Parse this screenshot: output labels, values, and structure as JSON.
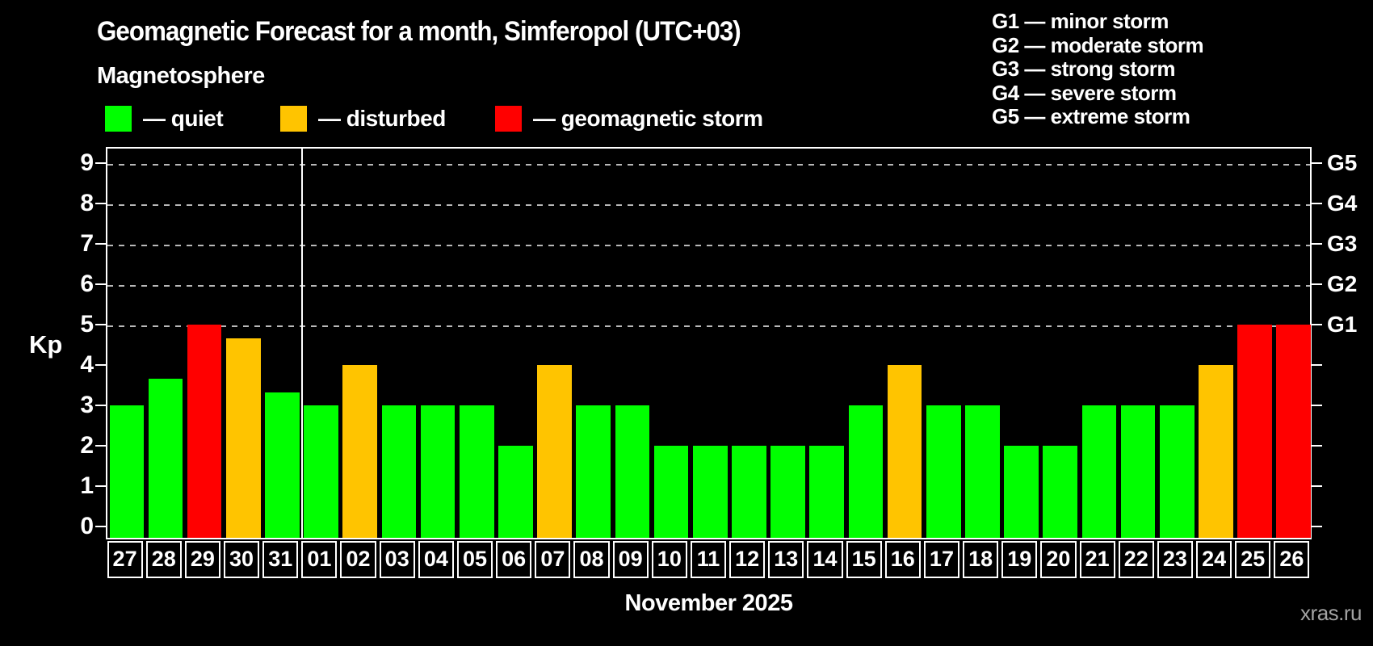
{
  "title": "Geomagnetic Forecast for a month, Simferopol (UTC+03)",
  "subtitle": "Magnetosphere",
  "legend": {
    "items": [
      {
        "key": "quiet",
        "label": "— quiet",
        "color": "#00ff00"
      },
      {
        "key": "disturbed",
        "label": "— disturbed",
        "color": "#ffc400"
      },
      {
        "key": "storm",
        "label": "— geomagnetic storm",
        "color": "#ff0000"
      }
    ]
  },
  "g_legend": [
    "G1 — minor storm",
    "G2 — moderate storm",
    "G3 — strong storm",
    "G4 — severe storm",
    "G5 — extreme storm"
  ],
  "watermark": "xras.ru",
  "colors": {
    "background": "#000000",
    "text": "#ffffff",
    "grid": "#b8b8b8",
    "watermark": "#a3a3a3",
    "quiet": "#00ff00",
    "disturbed": "#ffc400",
    "storm": "#ff0000"
  },
  "chart_data": {
    "type": "bar",
    "title": "Geomagnetic Forecast for a month, Simferopol (UTC+03)",
    "ylabel": "Kp",
    "xlabel": "November 2025",
    "ylim": [
      0,
      9
    ],
    "yticks": [
      0,
      1,
      2,
      3,
      4,
      5,
      6,
      7,
      8,
      9
    ],
    "grid_kp_levels": [
      5,
      6,
      7,
      8,
      9
    ],
    "right_axis_labels": [
      {
        "kp": 5,
        "label": "G1"
      },
      {
        "kp": 6,
        "label": "G2"
      },
      {
        "kp": 7,
        "label": "G3"
      },
      {
        "kp": 8,
        "label": "G4"
      },
      {
        "kp": 9,
        "label": "G5"
      }
    ],
    "month_separator_before_category": "01",
    "categories": [
      "27",
      "28",
      "29",
      "30",
      "31",
      "01",
      "02",
      "03",
      "04",
      "05",
      "06",
      "07",
      "08",
      "09",
      "10",
      "11",
      "12",
      "13",
      "14",
      "15",
      "16",
      "17",
      "18",
      "19",
      "20",
      "21",
      "22",
      "23",
      "24",
      "25",
      "26"
    ],
    "values": [
      3.0,
      3.67,
      5.0,
      4.67,
      3.33,
      3.0,
      4.0,
      3.0,
      3.0,
      3.0,
      2.0,
      4.0,
      3.0,
      3.0,
      2.0,
      2.0,
      2.0,
      2.0,
      2.0,
      3.0,
      4.0,
      3.0,
      3.0,
      2.0,
      2.0,
      3.0,
      3.0,
      3.0,
      4.0,
      5.0,
      5.0
    ],
    "statuses": [
      "quiet",
      "quiet",
      "storm",
      "disturbed",
      "quiet",
      "quiet",
      "disturbed",
      "quiet",
      "quiet",
      "quiet",
      "quiet",
      "disturbed",
      "quiet",
      "quiet",
      "quiet",
      "quiet",
      "quiet",
      "quiet",
      "quiet",
      "quiet",
      "disturbed",
      "quiet",
      "quiet",
      "quiet",
      "quiet",
      "quiet",
      "quiet",
      "quiet",
      "disturbed",
      "storm",
      "storm"
    ]
  }
}
